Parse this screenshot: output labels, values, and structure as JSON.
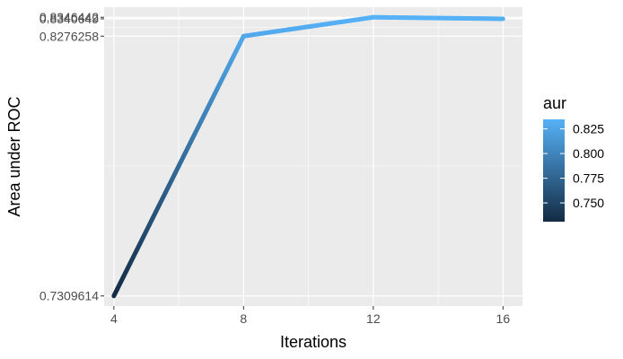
{
  "chart_data": {
    "type": "line",
    "title": "",
    "xlabel": "Iterations",
    "ylabel": "Area under ROC",
    "x": [
      4,
      8,
      12,
      16
    ],
    "y": [
      0.7309614,
      0.8276258,
      0.8346442,
      0.8340649
    ],
    "color_by": "y",
    "xlim": [
      3.7,
      16.6
    ],
    "ylim": [
      0.7272,
      0.8384
    ],
    "x_ticks": [
      4,
      8,
      12,
      16
    ],
    "x_tick_labels": [
      "4",
      "8",
      "12",
      "16"
    ],
    "y_ticks": [
      0.7309614,
      0.8276258,
      0.8340649,
      0.8346442
    ],
    "y_tick_labels": [
      "0.7309614",
      "0.8276258",
      "0.8340649",
      "0.8346442"
    ],
    "grid": true,
    "legend": {
      "title": "aur",
      "position": "right",
      "type": "colorbar",
      "range": [
        0.7309614,
        0.8346442
      ],
      "breaks": [
        0.75,
        0.775,
        0.8,
        0.825
      ],
      "break_labels": [
        "0.750",
        "0.775",
        "0.800",
        "0.825"
      ],
      "low_color": "#132B43",
      "high_color": "#56B1F7"
    },
    "panel_background": "#EBEBEB",
    "grid_color": "#FFFFFF"
  }
}
